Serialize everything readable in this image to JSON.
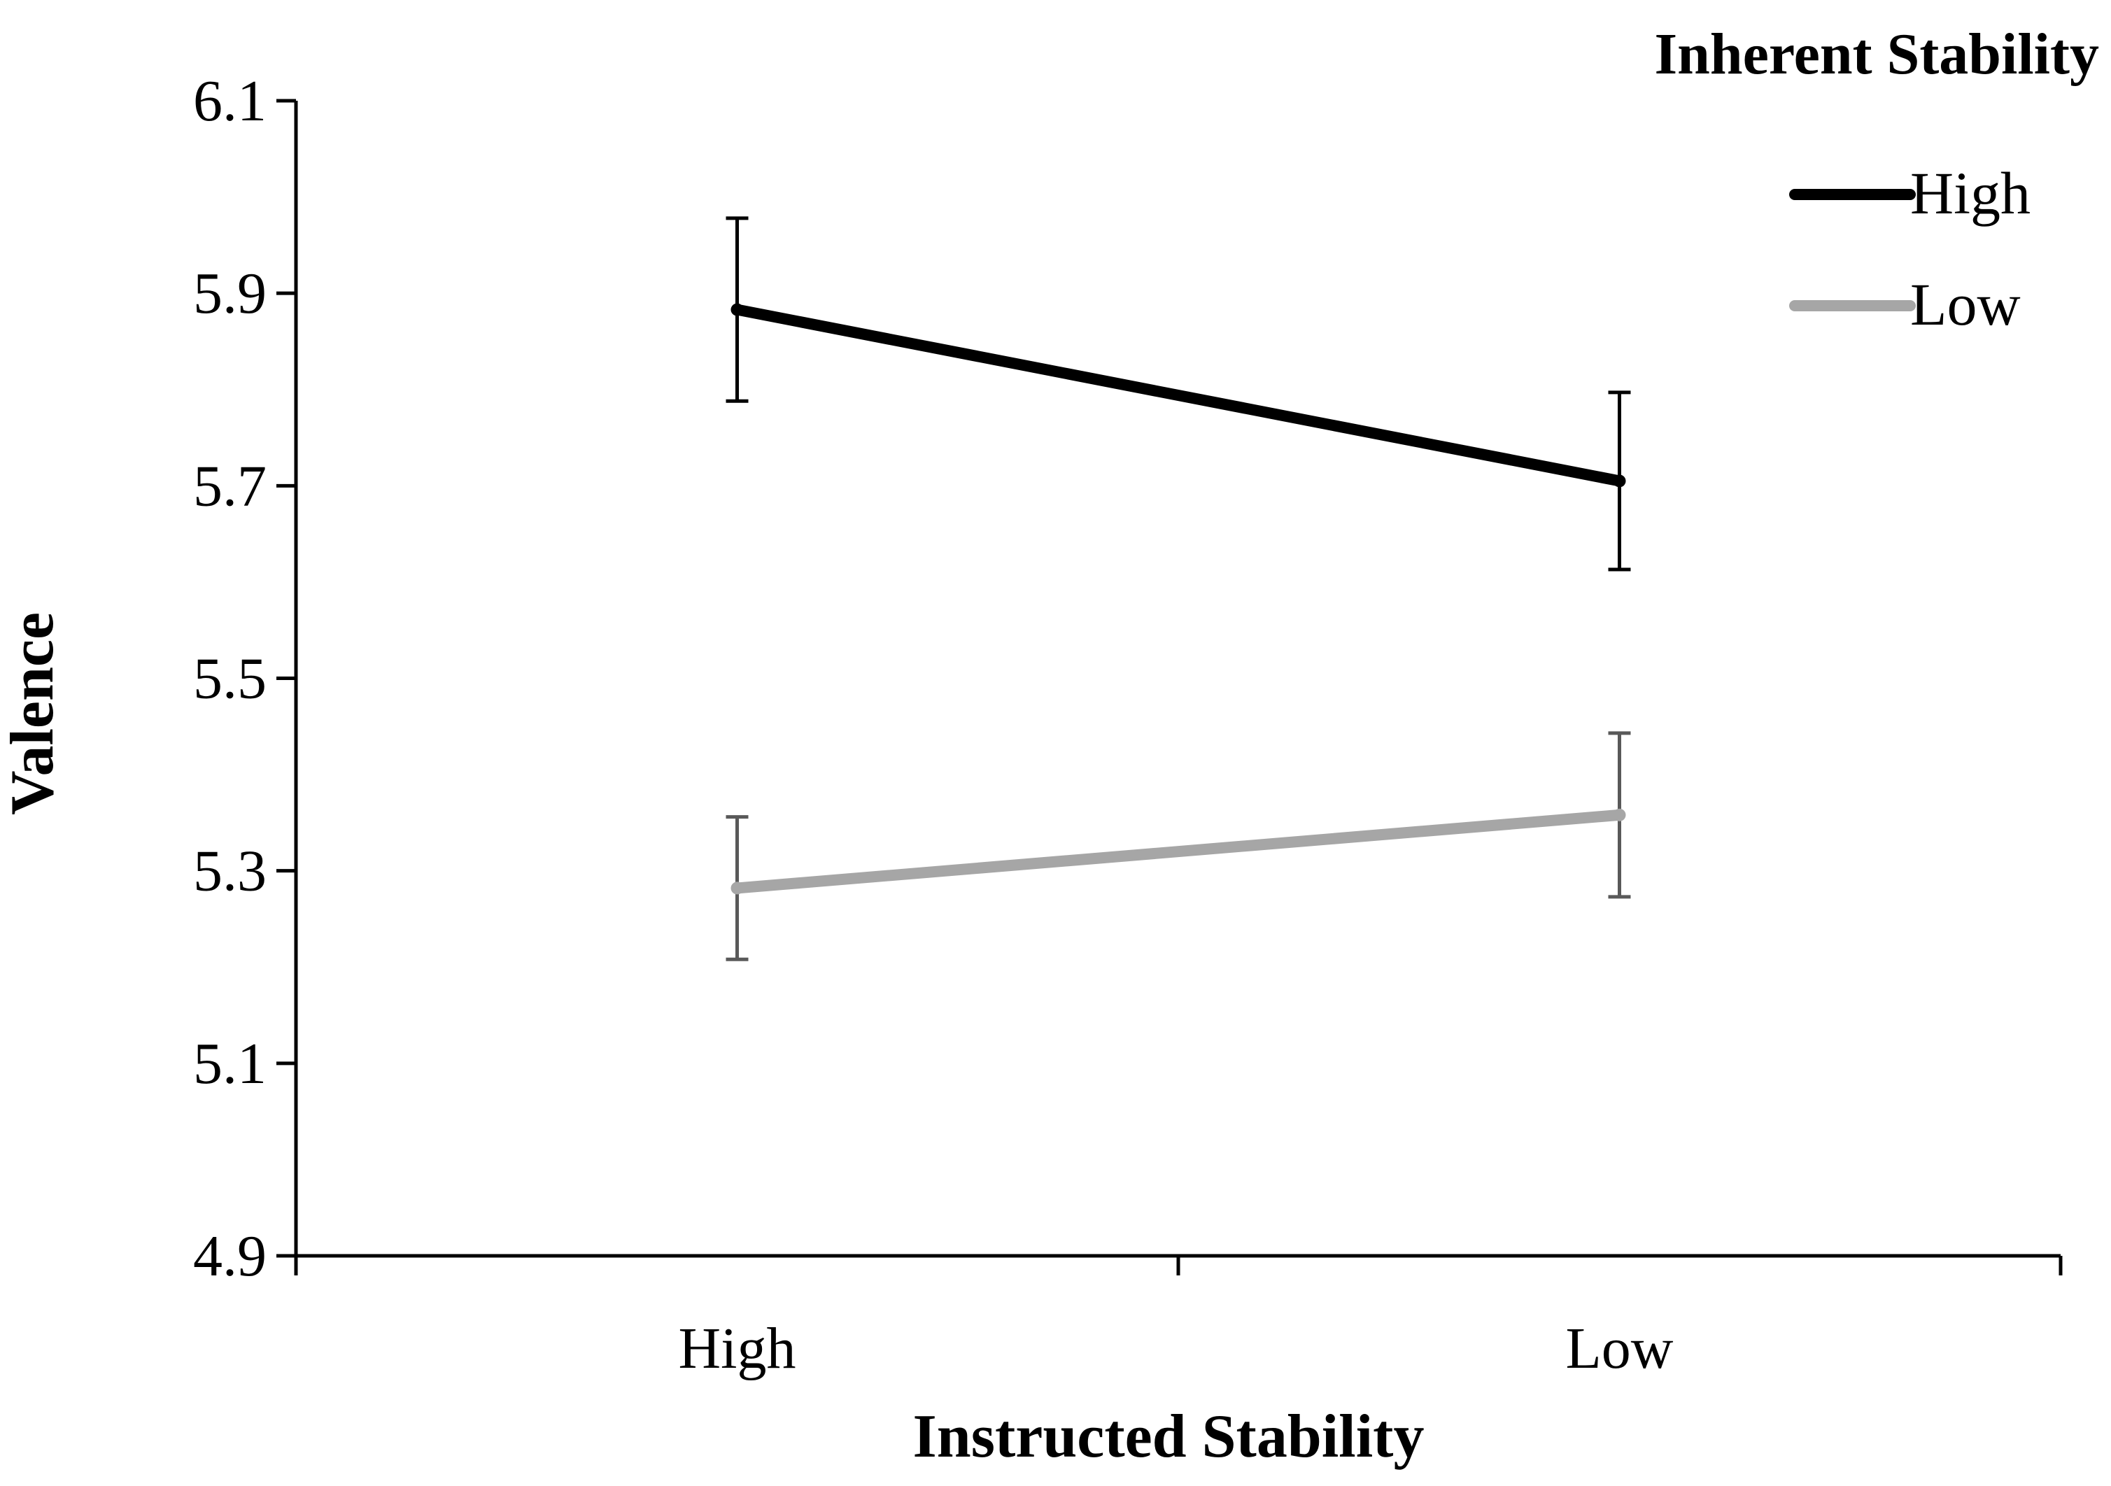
{
  "chart_data": {
    "type": "line",
    "title": "",
    "xlabel": "Instructed Stability",
    "ylabel": "Valence",
    "categories": [
      "High",
      "Low"
    ],
    "ylim": [
      4.9,
      6.1
    ],
    "yticks": [
      "6.1",
      "5.9",
      "5.7",
      "5.5",
      "5.3",
      "5.1",
      "4.9"
    ],
    "grid": false,
    "legend": {
      "title": "Inherent Stability",
      "placement": "top-right"
    },
    "series": [
      {
        "name": "High",
        "color": "#000000",
        "errorbar_color": "#000000",
        "values": [
          5.883,
          5.705
        ],
        "error": [
          0.095,
          0.092
        ]
      },
      {
        "name": "Low",
        "color": "#a6a6a6",
        "errorbar_color": "#595959",
        "values": [
          5.282,
          5.358
        ],
        "error": [
          0.074,
          0.085
        ]
      }
    ]
  }
}
